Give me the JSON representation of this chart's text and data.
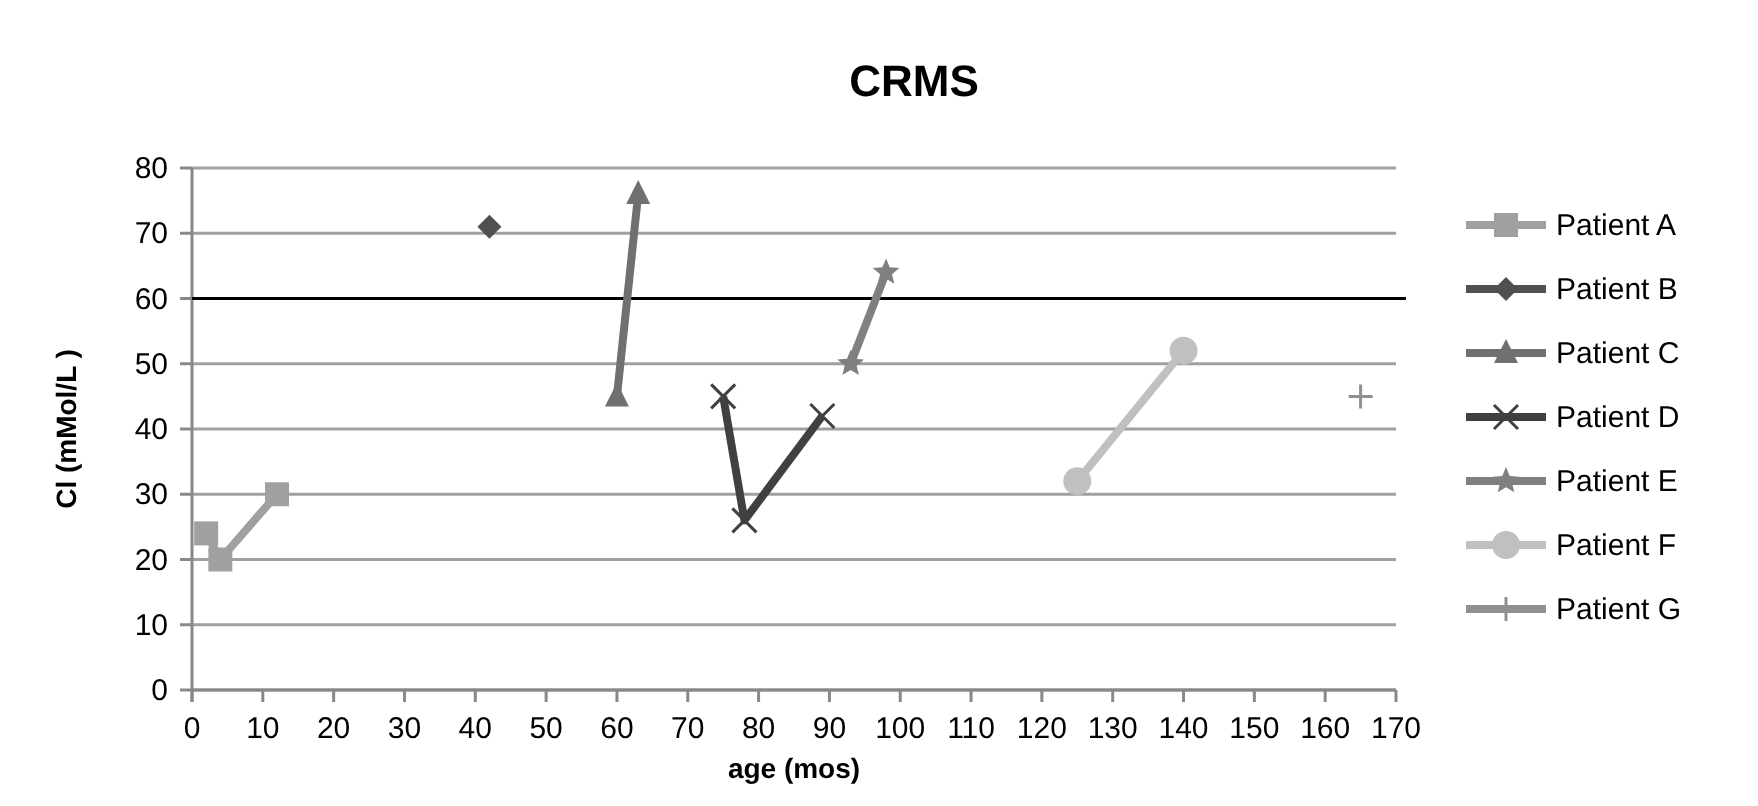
{
  "chart_data": {
    "type": "line",
    "title": "CRMS",
    "xlabel": "age (mos)",
    "ylabel": "Cl (mMol/L )",
    "xlim": [
      0,
      170
    ],
    "xticks": [
      0,
      10,
      20,
      30,
      40,
      50,
      60,
      70,
      80,
      90,
      100,
      110,
      120,
      130,
      140,
      150,
      160,
      170
    ],
    "ylim": [
      0,
      80
    ],
    "yticks": [
      0,
      10,
      20,
      30,
      40,
      50,
      60,
      70,
      80
    ],
    "grid": "y",
    "legend": "right",
    "ref_lines": [
      {
        "axis": "y",
        "value": 60,
        "color": "#000000"
      }
    ],
    "series": [
      {
        "name": "Patient A",
        "color": "#a0a0a0",
        "marker": "square",
        "x": [
          2,
          4,
          12
        ],
        "values": [
          24,
          20,
          30
        ]
      },
      {
        "name": "Patient B",
        "color": "#505050",
        "marker": "diamond",
        "x": [
          42
        ],
        "values": [
          71
        ]
      },
      {
        "name": "Patient C",
        "color": "#707070",
        "marker": "triangle",
        "x": [
          60,
          63
        ],
        "values": [
          45,
          76
        ]
      },
      {
        "name": "Patient D",
        "color": "#404040",
        "marker": "cross",
        "x": [
          75,
          78,
          89
        ],
        "values": [
          45,
          26,
          42
        ]
      },
      {
        "name": "Patient E",
        "color": "#808080",
        "marker": "star",
        "x": [
          93,
          98
        ],
        "values": [
          50,
          64
        ]
      },
      {
        "name": "Patient F",
        "color": "#c0c0c0",
        "marker": "circle",
        "x": [
          125,
          140
        ],
        "values": [
          32,
          52
        ]
      },
      {
        "name": "Patient G",
        "color": "#909090",
        "marker": "plus",
        "x": [
          165
        ],
        "values": [
          45
        ]
      }
    ]
  }
}
